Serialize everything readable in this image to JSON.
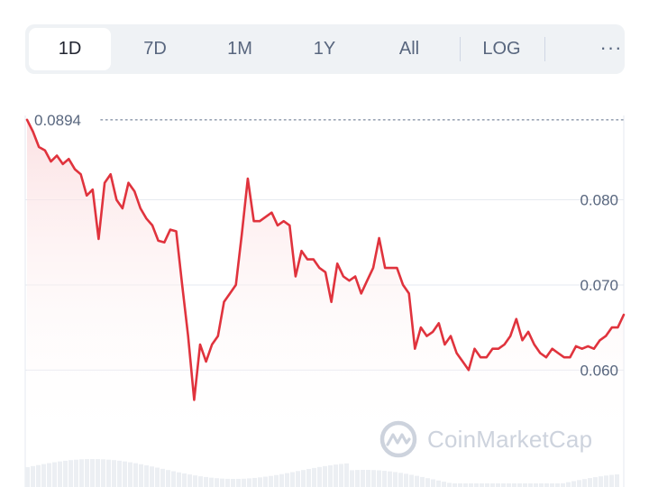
{
  "tabs": [
    {
      "label": "1D",
      "active": true
    },
    {
      "label": "7D",
      "active": false
    },
    {
      "label": "1M",
      "active": false
    },
    {
      "label": "1Y",
      "active": false
    },
    {
      "label": "All",
      "active": false
    }
  ],
  "log_label": "LOG",
  "more_label": "···",
  "watermark": {
    "text": "CoinMarketCap",
    "icon": "coinmarketcap-logo-icon"
  },
  "colors": {
    "line": "#e0333d",
    "fill_top": "#fbdcde",
    "grid": "#e6eaf0"
  },
  "chart_data": {
    "type": "area",
    "max_label": "0.0894",
    "y_tick_labels": [
      "0.080",
      "0.070",
      "0.060"
    ],
    "y_ticks": [
      0.08,
      0.07,
      0.06
    ],
    "ylim": [
      0.0505,
      0.0897
    ],
    "x": [
      0,
      1,
      2,
      3,
      4,
      5,
      6,
      7,
      8,
      9,
      10,
      11,
      12,
      13,
      14,
      15,
      16,
      17,
      18,
      19,
      20,
      21,
      22,
      23,
      24,
      25,
      26,
      27,
      28,
      29,
      30,
      31,
      32,
      33,
      34,
      35,
      36,
      37,
      38,
      39,
      40,
      41,
      42,
      43,
      44,
      45,
      46,
      47,
      48,
      49,
      50,
      51,
      52,
      53,
      54,
      55,
      56,
      57,
      58,
      59,
      60,
      61,
      62,
      63,
      64,
      65,
      66,
      67,
      68,
      69,
      70,
      71,
      72,
      73,
      74,
      75,
      76,
      77,
      78,
      79,
      80,
      81,
      82,
      83,
      84,
      85,
      86,
      87,
      88,
      89,
      90,
      91,
      92,
      93,
      94,
      95,
      96,
      97,
      98,
      99,
      100
    ],
    "values": [
      0.0894,
      0.088,
      0.0862,
      0.0858,
      0.0845,
      0.0852,
      0.0842,
      0.0848,
      0.0836,
      0.083,
      0.0805,
      0.0812,
      0.0754,
      0.082,
      0.083,
      0.08,
      0.079,
      0.082,
      0.081,
      0.079,
      0.0778,
      0.077,
      0.0752,
      0.075,
      0.0765,
      0.0763,
      0.07,
      0.064,
      0.0565,
      0.063,
      0.061,
      0.063,
      0.064,
      0.068,
      0.069,
      0.07,
      0.076,
      0.0825,
      0.0775,
      0.0775,
      0.078,
      0.0785,
      0.077,
      0.0775,
      0.077,
      0.071,
      0.074,
      0.073,
      0.073,
      0.072,
      0.0715,
      0.068,
      0.0725,
      0.071,
      0.0705,
      0.071,
      0.069,
      0.0705,
      0.072,
      0.0755,
      0.072,
      0.072,
      0.072,
      0.07,
      0.069,
      0.0625,
      0.065,
      0.064,
      0.0645,
      0.0655,
      0.063,
      0.064,
      0.062,
      0.061,
      0.06,
      0.0625,
      0.0615,
      0.0615,
      0.0625,
      0.0625,
      0.063,
      0.064,
      0.066,
      0.0635,
      0.0645,
      0.063,
      0.062,
      0.0615,
      0.0625,
      0.062,
      0.0615,
      0.0615,
      0.0628,
      0.0625,
      0.0628,
      0.0625,
      0.0635,
      0.064,
      0.065,
      0.065,
      0.0665
    ]
  }
}
